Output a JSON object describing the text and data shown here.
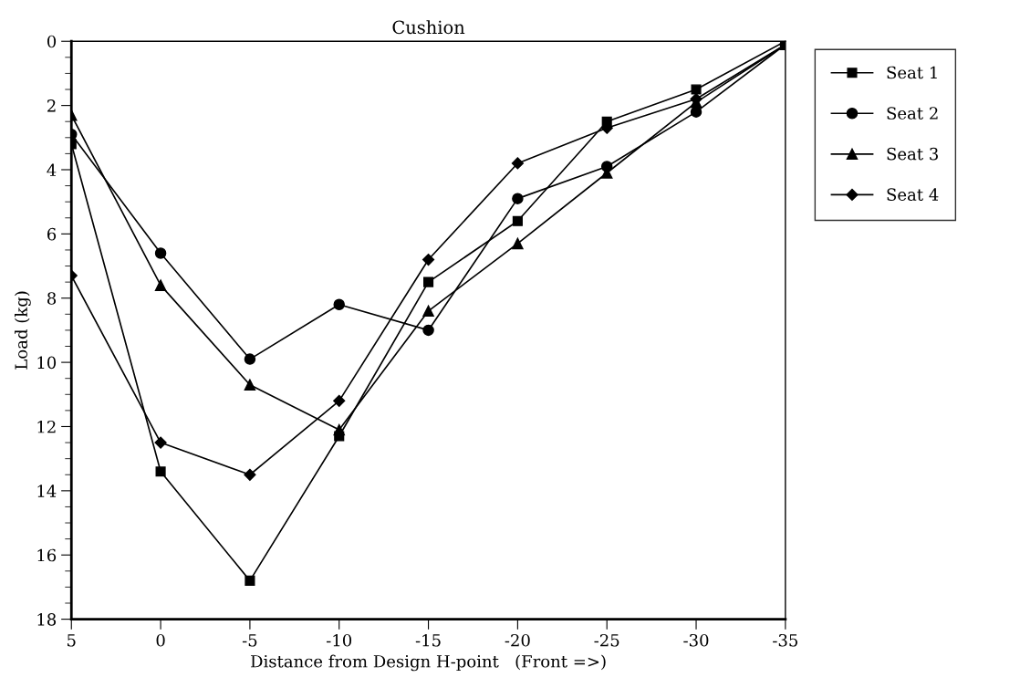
{
  "chart_data": {
    "type": "line",
    "title": "Cushion",
    "xlabel": "Distance from Design H-point   (Front =>)",
    "ylabel": "Load (kg)",
    "x": [
      5,
      0,
      -5,
      -10,
      -15,
      -20,
      -25,
      -30,
      -35
    ],
    "xlim": [
      5,
      -35
    ],
    "xticks": [
      5,
      0,
      -5,
      -10,
      -15,
      -20,
      -25,
      -30,
      -35
    ],
    "ylim": [
      18,
      0
    ],
    "yticks": [
      0,
      2,
      4,
      6,
      8,
      10,
      12,
      14,
      16,
      18
    ],
    "grid": false,
    "legend": "top right",
    "line_style": "solid",
    "series": [
      {
        "name": "Seat 1",
        "color": "#000000",
        "marker": "square",
        "values": [
          3.2,
          13.4,
          16.8,
          12.3,
          7.5,
          5.6,
          2.5,
          1.5,
          0
        ]
      },
      {
        "name": "Seat 2",
        "color": "#000000",
        "marker": "circle",
        "values": [
          2.9,
          6.6,
          9.9,
          8.2,
          9.0,
          4.9,
          3.9,
          2.2,
          0.1
        ]
      },
      {
        "name": "Seat 3",
        "color": "#000000",
        "marker": "triangle",
        "values": [
          2.3,
          7.6,
          10.7,
          12.1,
          8.4,
          6.3,
          4.1,
          1.9,
          0.1
        ]
      },
      {
        "name": "Seat 4",
        "color": "#000000",
        "marker": "diamond",
        "values": [
          7.3,
          12.5,
          13.5,
          11.2,
          6.8,
          3.8,
          2.7,
          1.8,
          0.1
        ]
      }
    ]
  }
}
